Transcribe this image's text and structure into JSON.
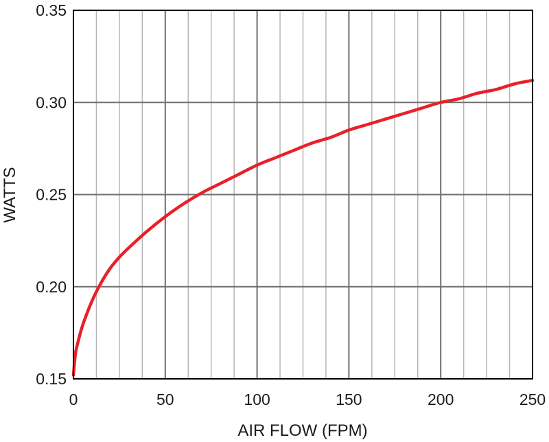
{
  "chart_data": {
    "type": "line",
    "title": "",
    "xlabel": "AIR FLOW (FPM)",
    "ylabel": "WATTS",
    "xlim": [
      0,
      250
    ],
    "ylim": [
      0.15,
      0.35
    ],
    "x_ticks": [
      0,
      50,
      100,
      150,
      200,
      250
    ],
    "x_tick_labels": [
      "0",
      "50",
      "100",
      "150",
      "200",
      "250"
    ],
    "y_ticks": [
      0.15,
      0.2,
      0.25,
      0.3,
      0.35
    ],
    "y_tick_labels": [
      "0.15",
      "0.20",
      "0.25",
      "0.30",
      "0.35"
    ],
    "x_minor_step": 12.5,
    "grid": true,
    "legend": "none",
    "colors": {
      "series": "#e8202a",
      "major_grid": "#6e6e6e",
      "minor_grid": "#b5b5b5",
      "frame": "#000000"
    },
    "series": [
      {
        "x": [
          0,
          1,
          2,
          5,
          10,
          15,
          20,
          25,
          30,
          40,
          50,
          60,
          70,
          80,
          90,
          100,
          110,
          120,
          130,
          140,
          150,
          160,
          170,
          180,
          190,
          200,
          210,
          220,
          230,
          240,
          250
        ],
        "y": [
          0.152,
          0.163,
          0.168,
          0.179,
          0.192,
          0.202,
          0.21,
          0.216,
          0.221,
          0.23,
          0.238,
          0.245,
          0.251,
          0.256,
          0.261,
          0.266,
          0.27,
          0.274,
          0.278,
          0.281,
          0.285,
          0.288,
          0.291,
          0.294,
          0.297,
          0.3,
          0.302,
          0.305,
          0.307,
          0.31,
          0.312
        ]
      }
    ]
  }
}
